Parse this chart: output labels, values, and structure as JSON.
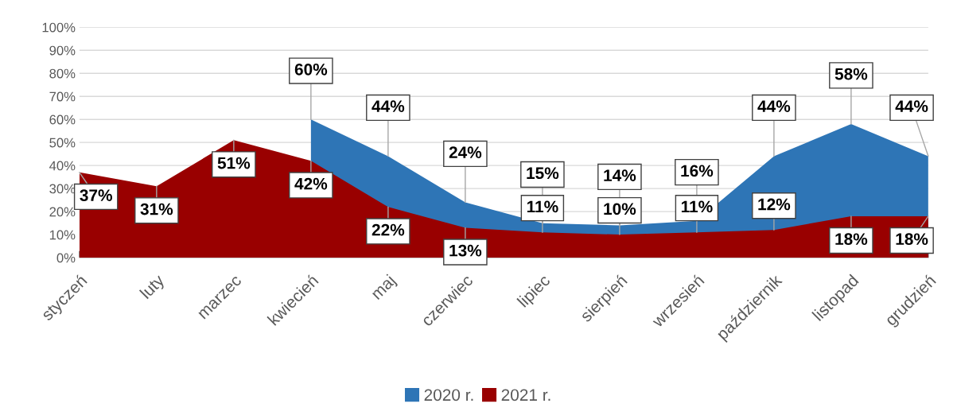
{
  "chart_data": {
    "type": "area",
    "categories": [
      "styczeń",
      "luty",
      "marzec",
      "kwiecień",
      "maj",
      "czerwiec",
      "lipiec",
      "sierpień",
      "wrzesień",
      "październik",
      "listopad",
      "grudzień"
    ],
    "series": [
      {
        "name": "2020 r.",
        "color": "#2e75b6",
        "values": [
          null,
          null,
          null,
          60,
          44,
          24,
          15,
          14,
          16,
          44,
          58,
          44
        ],
        "value_labels": [
          null,
          null,
          null,
          "60%",
          "44%",
          "24%",
          "15%",
          "14%",
          "16%",
          "44%",
          "58%",
          "44%"
        ]
      },
      {
        "name": "2021 r.",
        "color": "#990000",
        "values": [
          37,
          31,
          51,
          42,
          22,
          13,
          11,
          10,
          11,
          12,
          18,
          18
        ],
        "value_labels": [
          "37%",
          "31%",
          "51%",
          "42%",
          "22%",
          "13%",
          "11%",
          "10%",
          "11%",
          "12%",
          "18%",
          "18%"
        ]
      }
    ],
    "ylim": [
      0,
      100
    ],
    "yticks": [
      {
        "value": 0,
        "label": "0%"
      },
      {
        "value": 10,
        "label": "10%"
      },
      {
        "value": 20,
        "label": "20%"
      },
      {
        "value": 30,
        "label": "30%"
      },
      {
        "value": 40,
        "label": "40%"
      },
      {
        "value": 50,
        "label": "50%"
      },
      {
        "value": 60,
        "label": "60%"
      },
      {
        "value": 70,
        "label": "70%"
      },
      {
        "value": 80,
        "label": "80%"
      },
      {
        "value": 90,
        "label": "90%"
      },
      {
        "value": 100,
        "label": "100%"
      }
    ],
    "grid": "y",
    "legend": "bottom"
  }
}
